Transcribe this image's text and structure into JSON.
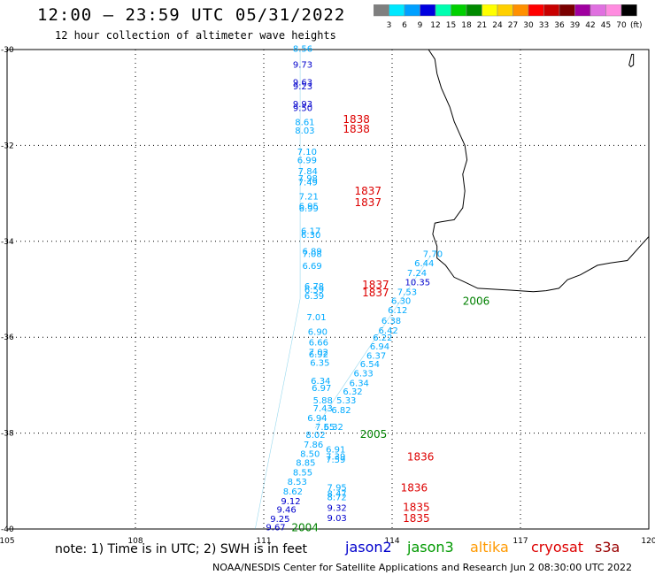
{
  "header": {
    "title": "12:00 – 23:59 UTC 05/31/2022",
    "subtitle": "12 hour collection of altimeter wave heights"
  },
  "colorbar": {
    "labels": [
      "3",
      "6",
      "9",
      "12",
      "15",
      "18",
      "21",
      "24",
      "27",
      "30",
      "33",
      "36",
      "39",
      "42",
      "45",
      "70"
    ],
    "colors": [
      "#7f7f7f",
      "#00e8ff",
      "#00a0ff",
      "#0000e0",
      "#00ffb0",
      "#00d000",
      "#008a00",
      "#ffff00",
      "#ffd000",
      "#ff9000",
      "#ff0000",
      "#c80000",
      "#7a0000",
      "#a000a0",
      "#e070e0",
      "#ff8ce0",
      "#000000"
    ],
    "unit": "(ft)"
  },
  "axes": {
    "lon_ticks": [
      "105",
      "108",
      "111",
      "114",
      "117",
      "120"
    ],
    "lat_ticks": [
      "-30",
      "-32",
      "-34",
      "-36",
      "-38",
      "-40"
    ]
  },
  "track_colors": {
    "jason2": "#0000cc",
    "jason3": "#00aaff",
    "s3a": "#00aaff",
    "time": "#dd0000",
    "green_time": "#008000",
    "s3a_track": "#1caad9"
  },
  "wave_labels": [
    {
      "v": "8.56",
      "lon": 111.68,
      "lat": -30.05,
      "c": "jason3"
    },
    {
      "v": "9.73",
      "lon": 111.68,
      "lat": -30.38,
      "c": "jason2"
    },
    {
      "v": "9.63",
      "lon": 111.68,
      "lat": -30.75,
      "c": "jason2"
    },
    {
      "v": "9.23",
      "lon": 111.68,
      "lat": -30.83,
      "c": "jason2"
    },
    {
      "v": "9.93",
      "lon": 111.68,
      "lat": -31.2,
      "c": "jason2"
    },
    {
      "v": "9.50",
      "lon": 111.68,
      "lat": -31.28,
      "c": "jason2"
    },
    {
      "v": "8.61",
      "lon": 111.73,
      "lat": -31.58,
      "c": "jason3"
    },
    {
      "v": "8.03",
      "lon": 111.73,
      "lat": -31.75,
      "c": "jason3"
    },
    {
      "v": "7.10",
      "lon": 111.78,
      "lat": -32.2,
      "c": "jason3"
    },
    {
      "v": "6.99",
      "lon": 111.78,
      "lat": -32.37,
      "c": "jason3"
    },
    {
      "v": "7.84",
      "lon": 111.8,
      "lat": -32.6,
      "c": "jason3"
    },
    {
      "v": "7.98",
      "lon": 111.8,
      "lat": -32.75,
      "c": "jason3"
    },
    {
      "v": "7.49",
      "lon": 111.8,
      "lat": -32.83,
      "c": "jason3"
    },
    {
      "v": "7.21",
      "lon": 111.82,
      "lat": -33.13,
      "c": "jason3"
    },
    {
      "v": "6.95",
      "lon": 111.82,
      "lat": -33.33,
      "c": "jason3"
    },
    {
      "v": "6.99",
      "lon": 111.82,
      "lat": -33.38,
      "c": "jason3"
    },
    {
      "v": "6.17",
      "lon": 111.87,
      "lat": -33.85,
      "c": "jason3"
    },
    {
      "v": "6.30",
      "lon": 111.87,
      "lat": -33.93,
      "c": "jason3"
    },
    {
      "v": "6.89",
      "lon": 111.9,
      "lat": -34.27,
      "c": "jason3"
    },
    {
      "v": "7.08",
      "lon": 111.9,
      "lat": -34.33,
      "c": "jason3"
    },
    {
      "v": "6.69",
      "lon": 111.9,
      "lat": -34.58,
      "c": "jason3"
    },
    {
      "v": "6.78",
      "lon": 111.95,
      "lat": -35.0,
      "c": "jason3"
    },
    {
      "v": "6.59",
      "lon": 111.95,
      "lat": -35.07,
      "c": "jason3"
    },
    {
      "v": "6.39",
      "lon": 111.95,
      "lat": -35.2,
      "c": "jason3"
    },
    {
      "v": "7.01",
      "lon": 112.0,
      "lat": -35.65,
      "c": "jason3"
    },
    {
      "v": "6.90",
      "lon": 112.03,
      "lat": -35.95,
      "c": "jason3"
    },
    {
      "v": "6.66",
      "lon": 112.05,
      "lat": -36.17,
      "c": "jason3"
    },
    {
      "v": "7.02",
      "lon": 112.05,
      "lat": -36.37,
      "c": "jason3"
    },
    {
      "v": "6.92",
      "lon": 112.05,
      "lat": -36.42,
      "c": "jason3"
    },
    {
      "v": "6.35",
      "lon": 112.08,
      "lat": -36.6,
      "c": "jason3"
    },
    {
      "v": "6.34",
      "lon": 112.1,
      "lat": -36.97,
      "c": "jason3"
    },
    {
      "v": "6.97",
      "lon": 112.12,
      "lat": -37.12,
      "c": "jason3"
    },
    {
      "v": "5.88",
      "lon": 112.15,
      "lat": -37.38,
      "c": "jason3"
    },
    {
      "v": "7.43",
      "lon": 112.15,
      "lat": -37.55,
      "c": "jason3"
    },
    {
      "v": "6.94",
      "lon": 112.02,
      "lat": -37.75,
      "c": "jason3"
    },
    {
      "v": "7.55",
      "lon": 112.2,
      "lat": -37.93,
      "c": "jason3"
    },
    {
      "v": "8.02",
      "lon": 111.98,
      "lat": -38.1,
      "c": "jason3"
    },
    {
      "v": "7.86",
      "lon": 111.93,
      "lat": -38.3,
      "c": "jason3"
    },
    {
      "v": "8.50",
      "lon": 111.85,
      "lat": -38.5,
      "c": "jason3"
    },
    {
      "v": "8.85",
      "lon": 111.75,
      "lat": -38.68,
      "c": "jason3"
    },
    {
      "v": "8.55",
      "lon": 111.68,
      "lat": -38.88,
      "c": "jason3"
    },
    {
      "v": "8.53",
      "lon": 111.55,
      "lat": -39.08,
      "c": "jason3"
    },
    {
      "v": "8.62",
      "lon": 111.45,
      "lat": -39.28,
      "c": "jason3"
    },
    {
      "v": "9.12",
      "lon": 111.4,
      "lat": -39.48,
      "c": "jason2"
    },
    {
      "v": "9.46",
      "lon": 111.3,
      "lat": -39.66,
      "c": "jason2"
    },
    {
      "v": "9.25",
      "lon": 111.15,
      "lat": -39.85,
      "c": "jason2"
    },
    {
      "v": "9.67",
      "lon": 111.05,
      "lat": -40.03,
      "c": "jason2"
    },
    {
      "v": "7.70",
      "lon": 114.72,
      "lat": -34.33,
      "c": "jason3"
    },
    {
      "v": "6.44",
      "lon": 114.52,
      "lat": -34.52,
      "c": "jason3"
    },
    {
      "v": "7.24",
      "lon": 114.35,
      "lat": -34.72,
      "c": "jason3"
    },
    {
      "v": "10.35",
      "lon": 114.3,
      "lat": -34.92,
      "c": "jason2"
    },
    {
      "v": "7.53",
      "lon": 114.12,
      "lat": -35.12,
      "c": "jason3"
    },
    {
      "v": "6.30",
      "lon": 113.98,
      "lat": -35.3,
      "c": "jason3"
    },
    {
      "v": "6.12",
      "lon": 113.9,
      "lat": -35.5,
      "c": "jason3"
    },
    {
      "v": "6.38",
      "lon": 113.75,
      "lat": -35.72,
      "c": "jason3"
    },
    {
      "v": "6.42",
      "lon": 113.68,
      "lat": -35.92,
      "c": "jason3"
    },
    {
      "v": "6.22",
      "lon": 113.55,
      "lat": -36.07,
      "c": "jason3"
    },
    {
      "v": "6.94",
      "lon": 113.48,
      "lat": -36.25,
      "c": "jason3"
    },
    {
      "v": "6.37",
      "lon": 113.4,
      "lat": -36.45,
      "c": "jason3"
    },
    {
      "v": "6.54",
      "lon": 113.25,
      "lat": -36.62,
      "c": "jason3"
    },
    {
      "v": "6.33",
      "lon": 113.1,
      "lat": -36.82,
      "c": "jason3"
    },
    {
      "v": "6.34",
      "lon": 113.0,
      "lat": -37.02,
      "c": "jason3"
    },
    {
      "v": "6.32",
      "lon": 112.85,
      "lat": -37.2,
      "c": "jason3"
    },
    {
      "v": "5.33",
      "lon": 112.7,
      "lat": -37.38,
      "c": "jason3"
    },
    {
      "v": "6.82",
      "lon": 112.58,
      "lat": -37.58,
      "c": "jason3"
    },
    {
      "v": "6.32",
      "lon": 112.4,
      "lat": -37.93,
      "c": "jason3"
    },
    {
      "v": "6.91",
      "lon": 112.45,
      "lat": -38.4,
      "c": "jason3"
    },
    {
      "v": "7.39",
      "lon": 112.45,
      "lat": -38.55,
      "c": "jason3"
    },
    {
      "v": "7.59",
      "lon": 112.45,
      "lat": -38.62,
      "c": "jason3"
    },
    {
      "v": "7.95",
      "lon": 112.48,
      "lat": -39.2,
      "c": "jason3"
    },
    {
      "v": "8.47",
      "lon": 112.48,
      "lat": -39.33,
      "c": "jason3"
    },
    {
      "v": "8.72",
      "lon": 112.48,
      "lat": -39.4,
      "c": "jason3"
    },
    {
      "v": "9.32",
      "lon": 112.48,
      "lat": -39.62,
      "c": "jason2"
    },
    {
      "v": "9.03",
      "lon": 112.48,
      "lat": -39.83,
      "c": "jason2"
    }
  ],
  "time_labels": [
    {
      "v": "1838",
      "lon": 112.85,
      "lat": -31.53,
      "c": "time"
    },
    {
      "v": "1838",
      "lon": 112.85,
      "lat": -31.73,
      "c": "time"
    },
    {
      "v": "1837",
      "lon": 113.12,
      "lat": -33.03,
      "c": "time"
    },
    {
      "v": "1837",
      "lon": 113.12,
      "lat": -33.27,
      "c": "time"
    },
    {
      "v": "1837",
      "lon": 113.3,
      "lat": -34.98,
      "c": "time"
    },
    {
      "v": "1837",
      "lon": 113.3,
      "lat": -35.15,
      "c": "time"
    },
    {
      "v": "2006",
      "lon": 115.65,
      "lat": -35.32,
      "c": "green_time"
    },
    {
      "v": "2005",
      "lon": 113.25,
      "lat": -38.1,
      "c": "green_time"
    },
    {
      "v": "1836",
      "lon": 114.35,
      "lat": -38.57,
      "c": "time"
    },
    {
      "v": "1836",
      "lon": 114.2,
      "lat": -39.22,
      "c": "time"
    },
    {
      "v": "1835",
      "lon": 114.25,
      "lat": -39.62,
      "c": "time"
    },
    {
      "v": "1835",
      "lon": 114.25,
      "lat": -39.85,
      "c": "time"
    },
    {
      "v": "2004",
      "lon": 111.65,
      "lat": -40.05,
      "c": "green_time"
    }
  ],
  "tracks": [
    {
      "name": "s3a-west",
      "from": [
        111.85,
        -30.0
      ],
      "to": [
        111.85,
        -35.2
      ]
    },
    {
      "name": "s3a-west-lower",
      "from": [
        111.85,
        -35.2
      ],
      "to": [
        110.8,
        -40.0
      ]
    },
    {
      "name": "s3a-east",
      "from": [
        114.9,
        -34.3
      ],
      "to": [
        112.2,
        -37.9
      ]
    }
  ],
  "note": "note:  1) Time is in UTC;  2) SWH is in feet",
  "satellites": [
    {
      "name": "jason2",
      "color": "#0000cc"
    },
    {
      "name": "jason3",
      "color": "#009900"
    },
    {
      "name": "altika",
      "color": "#ff9900"
    },
    {
      "name": "cryosat",
      "color": "#dd0000"
    },
    {
      "name": "s3a",
      "color": "#990000"
    }
  ],
  "footer": "NOAA/NESDIS Center for Satellite Applications and Research    Jun  2 08:30:00 UTC 2022"
}
